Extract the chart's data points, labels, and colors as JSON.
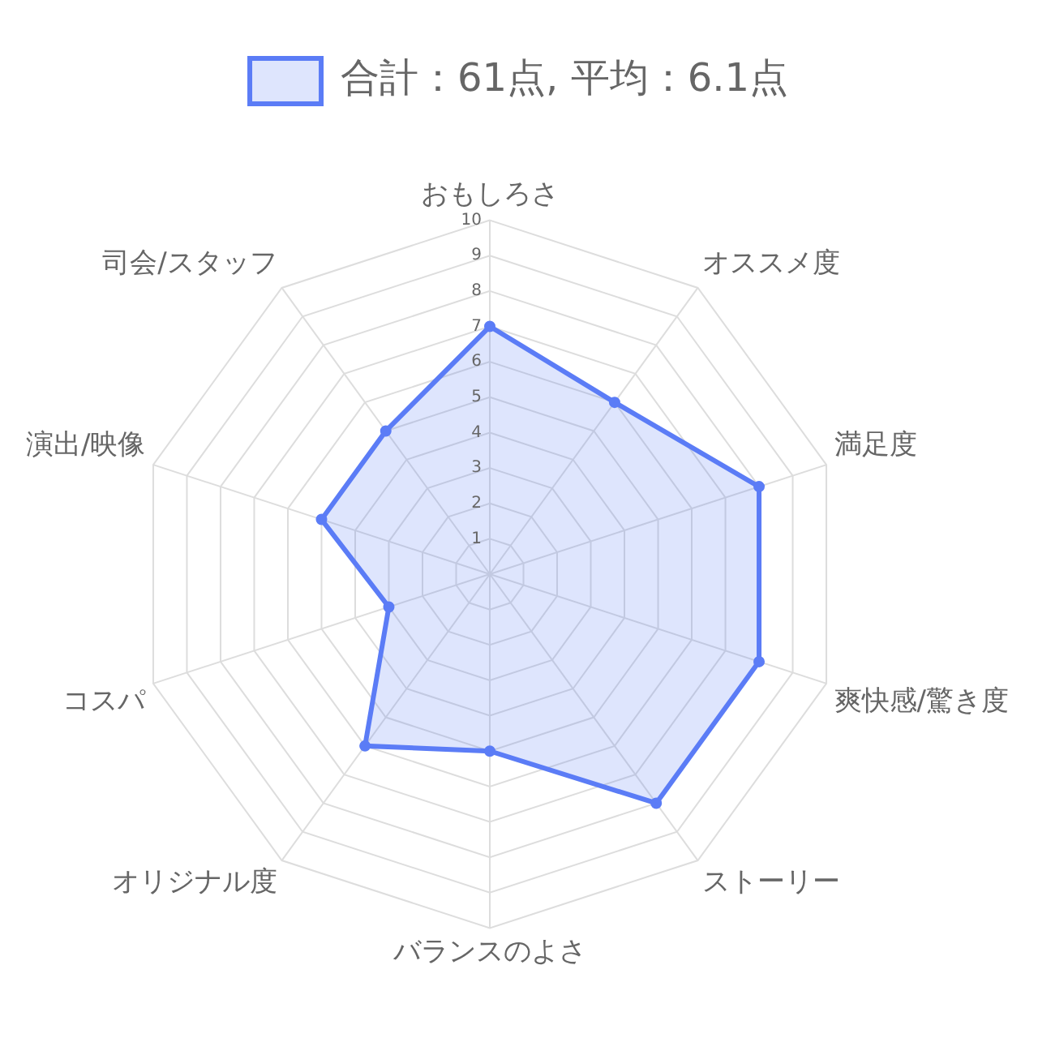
{
  "chart_data": {
    "type": "radar",
    "categories": [
      "おもしろさ",
      "オススメ度",
      "満足度",
      "爽快感/驚き度",
      "ストーリー",
      "バランスのよさ",
      "オリジナル度",
      "コスパ",
      "演出/映像",
      "司会/スタッフ"
    ],
    "series": [
      {
        "name": "合計：61点, 平均：6.1点",
        "color": "#5b7cf6",
        "values": [
          7,
          6,
          8,
          8,
          8,
          5,
          6,
          3,
          5,
          5
        ]
      }
    ],
    "ylim": [
      0,
      10
    ],
    "yticks": [
      1,
      2,
      3,
      4,
      5,
      6,
      7,
      8,
      9,
      10
    ],
    "grid": true,
    "legend": "top",
    "marker": "circle"
  }
}
